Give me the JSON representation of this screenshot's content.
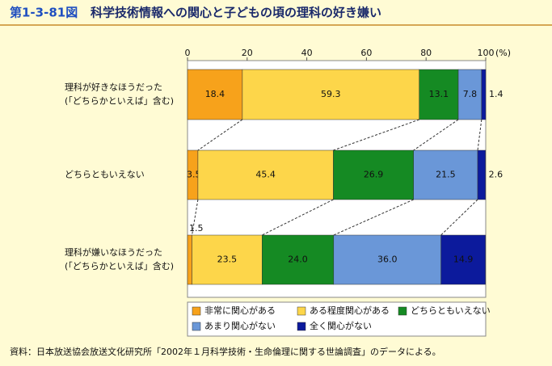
{
  "figure_number": "第1-3-81図",
  "chart_data": {
    "type": "stacked-barh",
    "title": "科学技術情報への関心と子どもの頃の理科の好き嫌い",
    "categories": [
      [
        "理科が好きなほうだった",
        "(「どちらかといえば」含む)"
      ],
      [
        "どちらともいえない"
      ],
      [
        "理科が嫌いなほうだった",
        "(「どちらかといえば」含む)"
      ]
    ],
    "series": [
      {
        "name": "非常に関心がある",
        "color": "#f7a21b",
        "values": [
          18.4,
          3.5,
          1.5
        ]
      },
      {
        "name": "ある程度関心がある",
        "color": "#fdd64a",
        "values": [
          59.3,
          45.4,
          23.5
        ]
      },
      {
        "name": "どちらともいえない",
        "color": "#158a23",
        "values": [
          13.1,
          26.9,
          24.0
        ],
        "value_labels": [
          "13.1",
          "26.9",
          "24.0"
        ]
      },
      {
        "name": "あまり関心がない",
        "color": "#6a97d8",
        "values": [
          7.8,
          21.5,
          36.0
        ],
        "value_labels": [
          "7.8",
          "21.5",
          "36.0"
        ]
      },
      {
        "name": "全く関心がない",
        "color": "#0c1a9c",
        "values": [
          1.4,
          2.6,
          14.9
        ]
      }
    ],
    "xlim": [
      0,
      100
    ],
    "xticks": [
      0,
      20,
      40,
      60,
      80,
      100
    ],
    "x_unit": "(%)",
    "source": "資料：日本放送協会放送文化研究所「2002年１月科学技術・生命倫理に関する世論調査」のデータによる。"
  }
}
